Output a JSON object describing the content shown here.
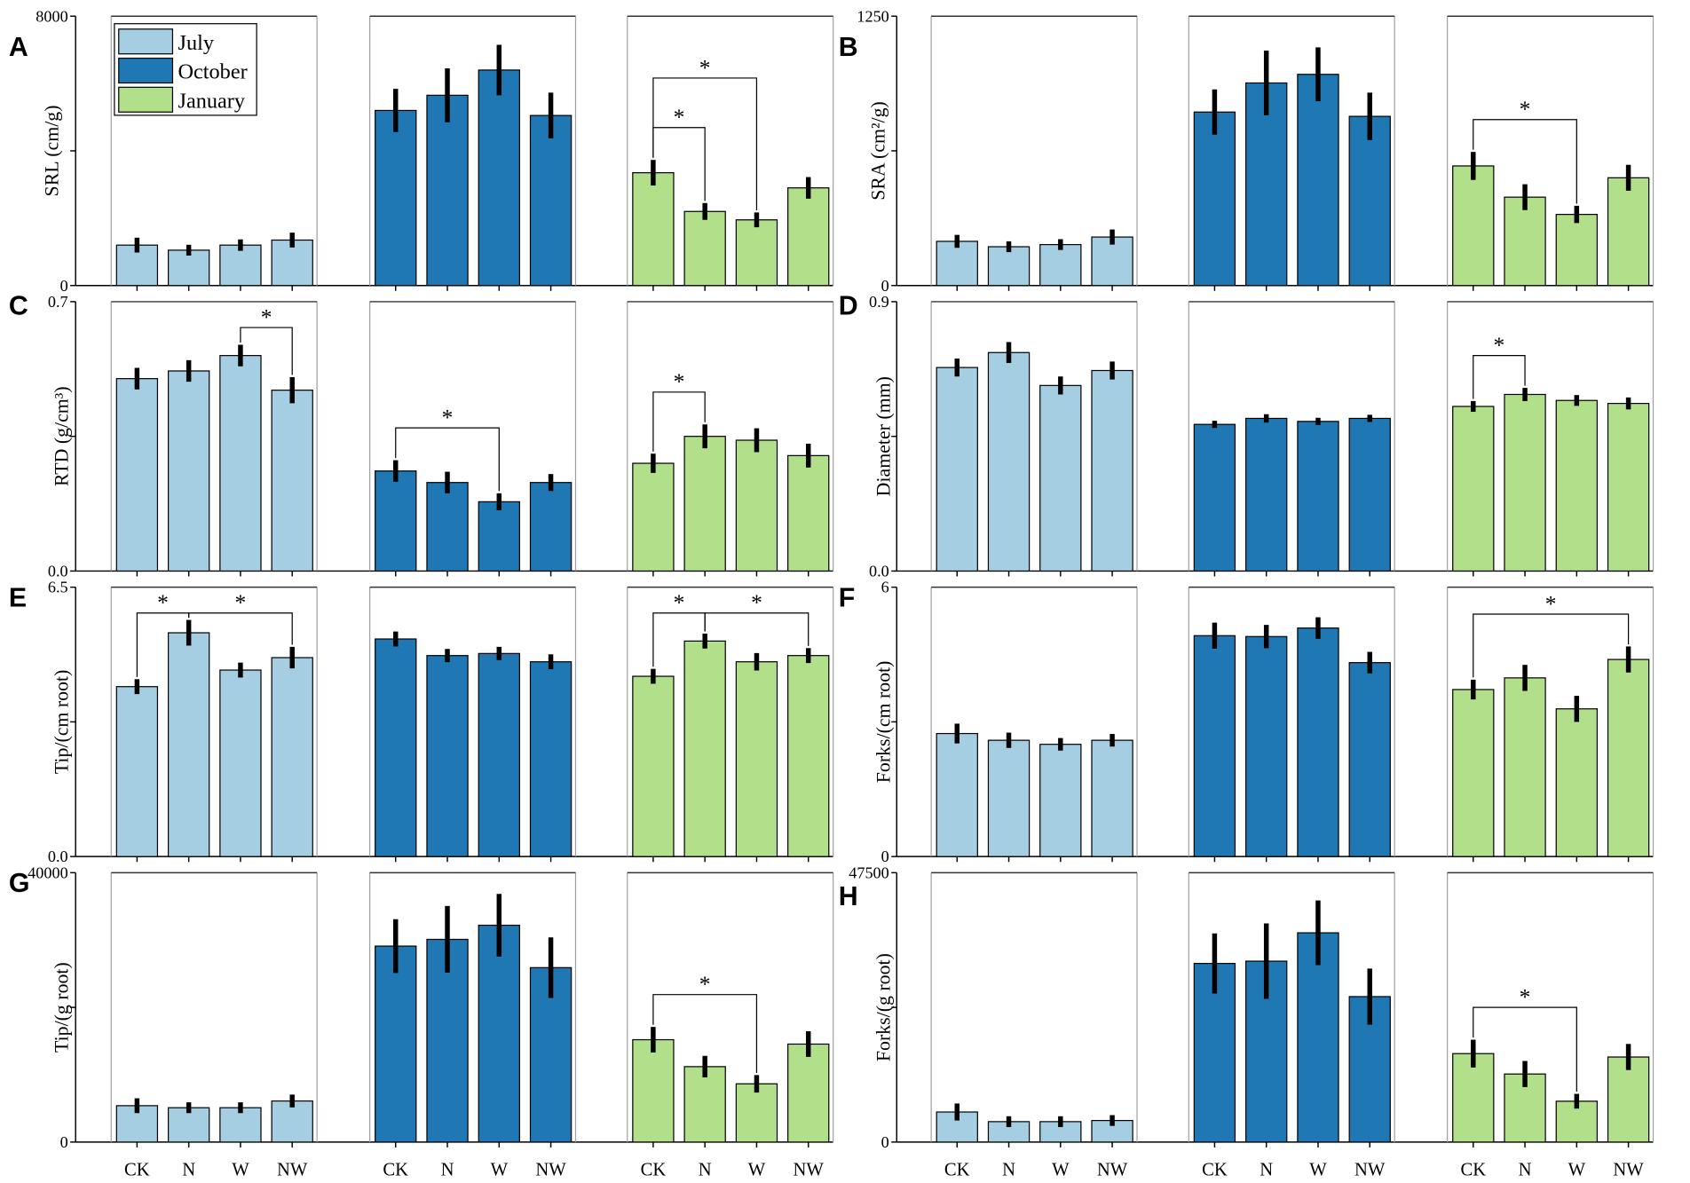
{
  "figure": {
    "categories": [
      "CK",
      "N",
      "W",
      "NW"
    ],
    "legend": [
      {
        "label": "July",
        "color": "#a6cee3"
      },
      {
        "label": "October",
        "color": "#1f78b4"
      },
      {
        "label": "January",
        "color": "#b2df8a"
      }
    ]
  },
  "chart_data": [
    {
      "panel": "A",
      "type": "bar",
      "ylabel": "SRL (cm/g)",
      "ylim": [
        0,
        8000
      ],
      "ytick_labels": [
        "0",
        "8000"
      ],
      "series": [
        {
          "values": [
            1200,
            1050,
            1200,
            1350
          ],
          "errors": [
            220,
            160,
            170,
            220
          ]
        },
        {
          "values": [
            5200,
            5650,
            6400,
            5050
          ],
          "errors": [
            640,
            800,
            750,
            680
          ]
        },
        {
          "values": [
            3350,
            2200,
            1950,
            2900
          ],
          "errors": [
            380,
            250,
            220,
            320
          ]
        }
      ],
      "significance": [
        {
          "series": 2,
          "between": [
            0,
            1
          ],
          "label": "*"
        },
        {
          "series": 2,
          "between": [
            0,
            2
          ],
          "label": "*"
        }
      ]
    },
    {
      "panel": "B",
      "type": "bar",
      "ylabel": "SRA (cm²/g)",
      "ylim": [
        0,
        1250
      ],
      "ytick_labels": [
        "0",
        "1250"
      ],
      "series": [
        {
          "values": [
            205,
            180,
            190,
            225
          ],
          "errors": [
            30,
            25,
            25,
            35
          ]
        },
        {
          "values": [
            805,
            940,
            980,
            785
          ],
          "errors": [
            105,
            150,
            125,
            110
          ]
        },
        {
          "values": [
            555,
            410,
            330,
            500
          ],
          "errors": [
            65,
            60,
            40,
            60
          ]
        }
      ],
      "significance": [
        {
          "series": 2,
          "between": [
            0,
            2
          ],
          "label": "*"
        }
      ]
    },
    {
      "panel": "C",
      "type": "bar",
      "ylabel": "RTD (g/cm³)",
      "ylim": [
        0,
        0.7
      ],
      "ytick_labels": [
        "0.0",
        "0.7"
      ],
      "series": [
        {
          "values": [
            0.5,
            0.52,
            0.56,
            0.47
          ],
          "errors": [
            0.028,
            0.028,
            0.028,
            0.034
          ]
        },
        {
          "values": [
            0.26,
            0.23,
            0.18,
            0.23
          ],
          "errors": [
            0.028,
            0.028,
            0.022,
            0.022
          ]
        },
        {
          "values": [
            0.28,
            0.35,
            0.34,
            0.3
          ],
          "errors": [
            0.025,
            0.031,
            0.031,
            0.031
          ]
        }
      ],
      "significance": [
        {
          "series": 0,
          "between": [
            2,
            3
          ],
          "label": "*"
        },
        {
          "series": 1,
          "between": [
            0,
            2
          ],
          "label": "*"
        },
        {
          "series": 2,
          "between": [
            0,
            1
          ],
          "label": "*"
        }
      ]
    },
    {
      "panel": "D",
      "type": "bar",
      "ylabel": "Diameter (mm)",
      "ylim": [
        0,
        0.9
      ],
      "ytick_labels": [
        "0.0",
        "0.9"
      ],
      "series": [
        {
          "values": [
            0.68,
            0.73,
            0.62,
            0.67
          ],
          "errors": [
            0.03,
            0.035,
            0.03,
            0.03
          ]
        },
        {
          "values": [
            0.49,
            0.51,
            0.5,
            0.51
          ],
          "errors": [
            0.012,
            0.014,
            0.012,
            0.012
          ]
        },
        {
          "values": [
            0.55,
            0.59,
            0.57,
            0.56
          ],
          "errors": [
            0.018,
            0.022,
            0.018,
            0.02
          ]
        }
      ],
      "significance": [
        {
          "series": 2,
          "between": [
            0,
            1
          ],
          "label": "*"
        }
      ]
    },
    {
      "panel": "E",
      "type": "bar",
      "ylabel": "Tip/(cm root)",
      "ylim": [
        0,
        6.5
      ],
      "ytick_labels": [
        "0.0",
        "6.5"
      ],
      "series": [
        {
          "values": [
            4.1,
            5.4,
            4.5,
            4.8
          ],
          "errors": [
            0.18,
            0.31,
            0.18,
            0.26
          ]
        },
        {
          "values": [
            5.25,
            4.85,
            4.9,
            4.7
          ],
          "errors": [
            0.18,
            0.16,
            0.16,
            0.18
          ]
        },
        {
          "values": [
            4.35,
            5.2,
            4.7,
            4.85
          ],
          "errors": [
            0.18,
            0.18,
            0.21,
            0.18
          ]
        }
      ],
      "significance": [
        {
          "series": 0,
          "between": [
            0,
            1
          ],
          "label": "*"
        },
        {
          "series": 0,
          "between": [
            1,
            3
          ],
          "label": "*"
        },
        {
          "series": 2,
          "between": [
            0,
            1
          ],
          "label": "*"
        },
        {
          "series": 2,
          "between": [
            1,
            3
          ],
          "label": "*"
        }
      ]
    },
    {
      "panel": "F",
      "type": "bar",
      "ylabel": "Forks/(cm root)",
      "ylim": [
        0,
        6
      ],
      "ytick_labels": [
        "0",
        "6"
      ],
      "series": [
        {
          "values": [
            2.74,
            2.59,
            2.5,
            2.59
          ],
          "errors": [
            0.22,
            0.17,
            0.14,
            0.14
          ]
        },
        {
          "values": [
            4.92,
            4.9,
            5.09,
            4.32
          ],
          "errors": [
            0.29,
            0.26,
            0.24,
            0.24
          ]
        },
        {
          "values": [
            3.72,
            3.98,
            3.29,
            4.39
          ],
          "errors": [
            0.22,
            0.29,
            0.29,
            0.29
          ]
        }
      ],
      "significance": [
        {
          "series": 2,
          "between": [
            0,
            3
          ],
          "label": "*"
        }
      ]
    },
    {
      "panel": "G",
      "type": "bar",
      "ylabel": "Tip/(g root)",
      "ylim": [
        0,
        40000
      ],
      "ytick_labels": [
        "0",
        "40000"
      ],
      "series": [
        {
          "values": [
            5400,
            5100,
            5100,
            6100
          ],
          "errors": [
            1100,
            800,
            800,
            950
          ]
        },
        {
          "values": [
            29100,
            30100,
            32200,
            25900
          ],
          "errors": [
            4000,
            4950,
            4650,
            4500
          ]
        },
        {
          "values": [
            15200,
            11200,
            8650,
            14550
          ],
          "errors": [
            1900,
            1600,
            1300,
            1900
          ]
        }
      ],
      "significance": [
        {
          "series": 2,
          "between": [
            0,
            2
          ],
          "label": "*"
        }
      ]
    },
    {
      "panel": "H",
      "type": "bar",
      "ylabel": "Forks/(g root)",
      "ylim": [
        0,
        47500
      ],
      "ytick_labels": [
        "0",
        "47500"
      ],
      "series": [
        {
          "values": [
            5300,
            3600,
            3600,
            3800
          ],
          "errors": [
            1500,
            950,
            950,
            950
          ]
        },
        {
          "values": [
            31500,
            31900,
            36900,
            25650
          ],
          "errors": [
            5300,
            6650,
            5700,
            4950
          ]
        },
        {
          "values": [
            15600,
            12000,
            7200,
            15000
          ],
          "errors": [
            2450,
            2300,
            1300,
            2300
          ]
        }
      ],
      "significance": [
        {
          "series": 2,
          "between": [
            0,
            2
          ],
          "label": "*"
        }
      ]
    }
  ]
}
